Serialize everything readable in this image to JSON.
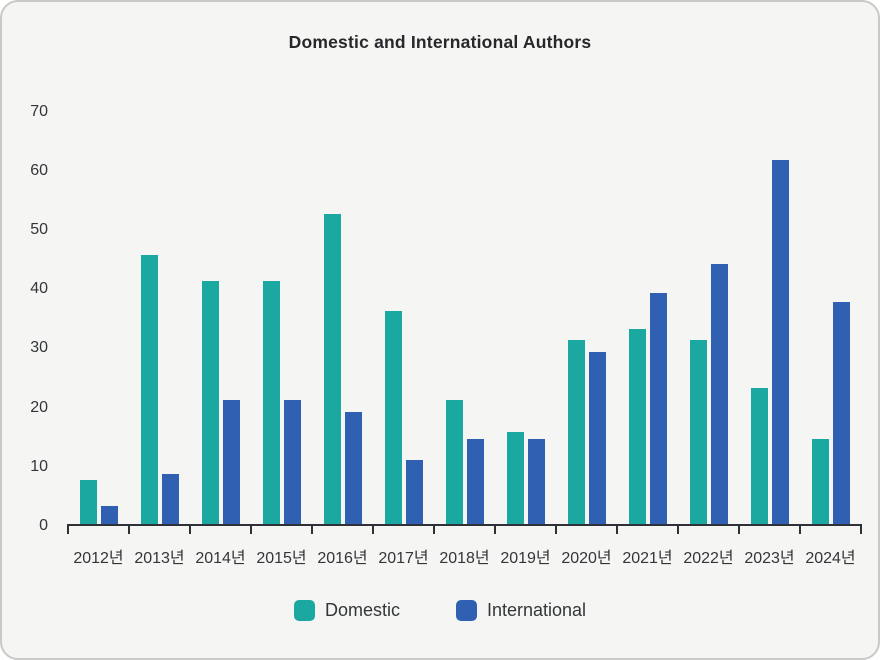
{
  "title": "Domestic and International Authors",
  "colors": {
    "domestic": "#1ba8a0",
    "international": "#3060b2",
    "background": "#f5f5f3",
    "card_border": "#c9c9c6",
    "axis": "#2e3135",
    "label_text": "#333639",
    "title_text": "#26282b"
  },
  "legend": {
    "items": [
      {
        "label": "Domestic",
        "color": "#1ba8a0"
      },
      {
        "label": "International",
        "color": "#3060b2"
      }
    ]
  },
  "chart_data": {
    "type": "bar",
    "title": "Domestic and International Authors",
    "categories": [
      "2012년",
      "2013년",
      "2014년",
      "2015년",
      "2016년",
      "2017년",
      "2018년",
      "2019년",
      "2020년",
      "2021년",
      "2022년",
      "2023년",
      "2024년"
    ],
    "series": [
      {
        "name": "Domestic",
        "color": "#1ba8a0",
        "values": [
          7.5,
          45.5,
          41,
          41,
          52.3,
          36,
          21,
          15.5,
          31,
          33,
          31,
          23,
          14.3
        ]
      },
      {
        "name": "International",
        "color": "#3060b2",
        "values": [
          3,
          8.5,
          21,
          21,
          19,
          10.8,
          14.3,
          14.3,
          29,
          39,
          44,
          61.5,
          37.5
        ]
      }
    ],
    "xlabel": "",
    "ylabel": "",
    "yticks": [
      0,
      10,
      20,
      30,
      40,
      50,
      60,
      70
    ],
    "ylim": [
      0,
      70
    ],
    "grid": false,
    "legend_position": "bottom"
  }
}
